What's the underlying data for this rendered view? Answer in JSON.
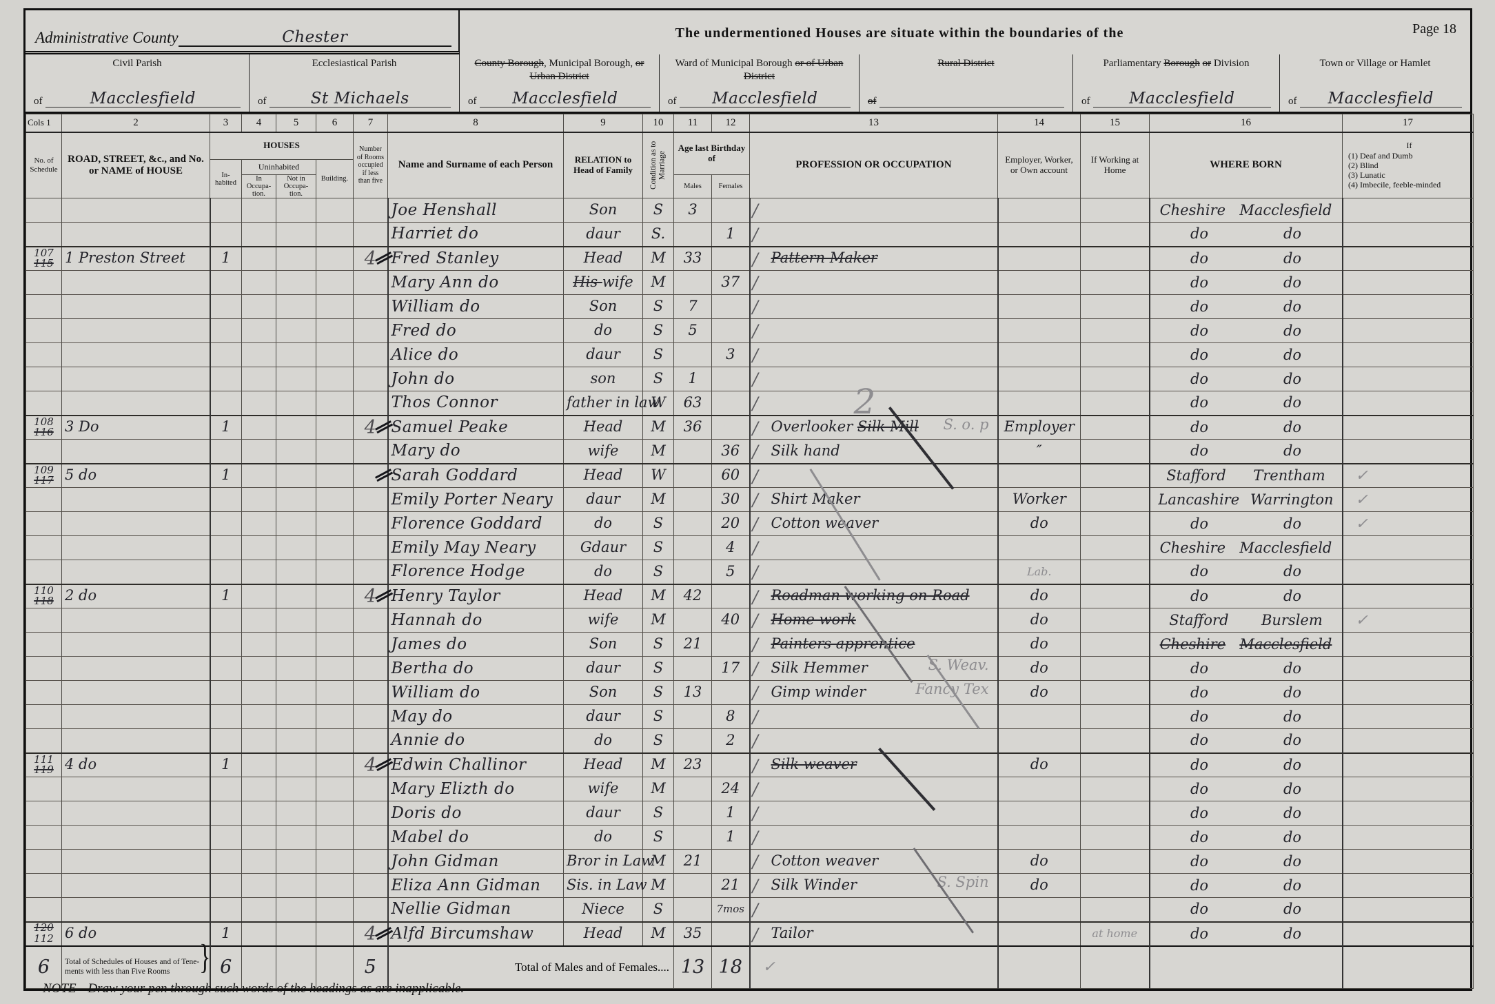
{
  "colors": {
    "paper": "#d7d6d2",
    "ink": "#23232a",
    "pencil": "#8e8d90",
    "print": "#131313"
  },
  "page": {
    "admin_county_label": "Administrative County",
    "admin_county_value": "Chester",
    "situate_text": "The undermentioned Houses are situate within the boundaries of the",
    "page_label": "Page 18",
    "note": "NOTE—Draw your pen through such words of the headings as are inapplicable."
  },
  "district_boxes": [
    {
      "title": [
        {
          "t": "Civil Parish"
        }
      ],
      "of": "of",
      "value": "Macclesfield"
    },
    {
      "title": [
        {
          "t": "Ecclesiastical Parish"
        }
      ],
      "of": "of",
      "value": "St Michaels"
    },
    {
      "title": [
        {
          "t": "County Borough",
          "s": 1
        },
        {
          "t": ", Municipal Borough, "
        },
        {
          "t": "or Urban District",
          "s": 1
        }
      ],
      "of": "of",
      "value": "Macclesfield"
    },
    {
      "title": [
        {
          "t": "Ward of Municipal Borough "
        },
        {
          "t": "or of Urban District",
          "s": 1
        }
      ],
      "of": "of",
      "value": "Macclesfield"
    },
    {
      "title": [
        {
          "t": "Rural District",
          "s": 1
        }
      ],
      "of": "of",
      "of_s": 1,
      "value": ""
    },
    {
      "title": [
        {
          "t": "Parliamentary "
        },
        {
          "t": "Borough",
          "s": 1
        },
        {
          "t": " "
        },
        {
          "t": "or",
          "s": 1
        },
        {
          "t": " Division"
        }
      ],
      "of": "of",
      "value": "Macclesfield"
    },
    {
      "title": [
        {
          "t": "Town or Village or Hamlet"
        }
      ],
      "of": "of",
      "value": "Macclesfield"
    }
  ],
  "columns": {
    "cols_label": "Cols 1",
    "numbers": [
      "2",
      "3",
      "4",
      "5",
      "6",
      "7",
      "8",
      "9",
      "10",
      "11",
      "12",
      "13",
      "14",
      "15",
      "16",
      "17"
    ],
    "schedule": "No. of Schedule",
    "road": "ROAD, STREET, &c., and No. or NAME of HOUSE",
    "houses": "HOUSES",
    "inhabited": "In-habited",
    "uninhabited": "Uninhabited",
    "in_occupation": "In Occupa-tion.",
    "not_in_occupation": "Not in Occupa-tion.",
    "building": "Building.",
    "rooms": "Number of Rooms occupied if less than five",
    "name": "Name and Surname of each Person",
    "relation": "RELATION to Head of Family",
    "condition": "Condition as to Marriage",
    "age": "Age last Birthday of",
    "males": "Males",
    "females": "Females",
    "profession": "PROFESSION OR OCCUPATION",
    "employer": "Employer, Worker, or Own account",
    "home": "If Working at Home",
    "born": "WHERE BORN",
    "infirm": [
      "If",
      "(1) Deaf and Dumb",
      "(2) Blind",
      "(3) Lunatic",
      "(4) Imbecile, feeble-minded"
    ]
  },
  "rows": [
    {
      "nm": "Joe Henshall",
      "rl": "Son",
      "cd": "S",
      "am": "3",
      "b1": "Cheshire",
      "b2": "Macclesfield"
    },
    {
      "nm": "Harriet do",
      "rl": "daur",
      "cd": "S.",
      "af": "1",
      "b1": "do",
      "b2": "do"
    },
    {
      "s1": "107",
      "s2": "115",
      "s2s": 1,
      "ad": "1 Preston Street",
      "in": "1",
      "rm": "4",
      "hh": 1,
      "nm": "Fred Stanley",
      "rl": "Head",
      "cd": "M",
      "am": "33",
      "pf": [
        [
          "Pattern Maker",
          1
        ]
      ],
      "b1": "do",
      "b2": "do"
    },
    {
      "nm": "Mary Ann do",
      "rp": "His",
      "rl": "wife",
      "cd": "M",
      "af": "37",
      "b1": "do",
      "b2": "do"
    },
    {
      "nm": "William do",
      "rl": "Son",
      "cd": "S",
      "am": "7",
      "b1": "do",
      "b2": "do"
    },
    {
      "nm": "Fred do",
      "rl": "do",
      "cd": "S",
      "am": "5",
      "b1": "do",
      "b2": "do"
    },
    {
      "nm": "Alice do",
      "rl": "daur",
      "cd": "S",
      "af": "3",
      "b1": "do",
      "b2": "do"
    },
    {
      "nm": "John do",
      "rl": "son",
      "cd": "S",
      "am": "1",
      "b1": "do",
      "b2": "do"
    },
    {
      "nm": "Thos Connor",
      "rl": "father in law",
      "cd": "W",
      "am": "63",
      "pb": "2",
      "b1": "do",
      "b2": "do"
    },
    {
      "s1": "108",
      "s2": "116",
      "s2s": 1,
      "ad": "3 Do",
      "in": "1",
      "rm": "4",
      "hh": 1,
      "nm": "Samuel Peake",
      "rl": "Head",
      "cd": "M",
      "am": "36",
      "pf": [
        [
          "Overlooker ",
          0
        ],
        [
          "Silk Mill",
          1
        ]
      ],
      "pp": "S. o. p",
      "em": "Employer",
      "b1": "do",
      "b2": "do"
    },
    {
      "nm": "Mary do",
      "rl": "wife",
      "cd": "M",
      "af": "36",
      "pf": [
        [
          "Silk hand",
          0
        ]
      ],
      "em": "″",
      "b1": "do",
      "b2": "do"
    },
    {
      "s1": "109",
      "s2": "117",
      "s2s": 1,
      "ad": "5 do",
      "in": "1",
      "hh": 1,
      "nm": "Sarah Goddard",
      "rl": "Head",
      "cd": "W",
      "af": "60",
      "b1": "Stafford",
      "b2": "Trentham",
      "ck": 1
    },
    {
      "nm": "Emily Porter Neary",
      "rl": "daur",
      "cd": "M",
      "af": "30",
      "pf": [
        [
          "Shirt Maker",
          0
        ]
      ],
      "em": "Worker",
      "b1": "Lancashire",
      "b2": "Warrington",
      "ck": 1
    },
    {
      "nm": "Florence Goddard",
      "rl": "do",
      "cd": "S",
      "af": "20",
      "pf": [
        [
          "Cotton weaver",
          0
        ]
      ],
      "em": "do",
      "b1": "do",
      "b2": "do",
      "ck": 1
    },
    {
      "nm": "Emily May Neary",
      "rl": "Gdaur",
      "cd": "S",
      "af": "4",
      "b1": "Cheshire",
      "b2": "Macclesfield"
    },
    {
      "nm": "Florence Hodge",
      "rl": "do",
      "cd": "S",
      "af": "5",
      "ep": "Lab.",
      "b1": "do",
      "b2": "do"
    },
    {
      "s1": "110",
      "s2": "118",
      "s2s": 1,
      "ad": "2 do",
      "in": "1",
      "rm": "4",
      "hh": 1,
      "nm": "Henry Taylor",
      "rl": "Head",
      "cd": "M",
      "am": "42",
      "pf": [
        [
          "Roadman working on Road",
          1
        ]
      ],
      "em": "do",
      "b1": "do",
      "b2": "do"
    },
    {
      "nm": "Hannah do",
      "rl": "wife",
      "cd": "M",
      "af": "40",
      "pf": [
        [
          "Home work",
          1
        ]
      ],
      "em": "do",
      "b1": "Stafford",
      "b2": "Burslem",
      "ck": 1
    },
    {
      "nm": "James do",
      "rl": "Son",
      "cd": "S",
      "am": "21",
      "pf": [
        [
          "Painters apprentice",
          1
        ]
      ],
      "em": "do",
      "b1": "Cheshire",
      "b2": "Macclesfield",
      "bs": 1
    },
    {
      "nm": "Bertha do",
      "rl": "daur",
      "cd": "S",
      "af": "17",
      "pf": [
        [
          "Silk Hemmer",
          0
        ]
      ],
      "pp": "S. Weav.",
      "em": "do",
      "b1": "do",
      "b2": "do"
    },
    {
      "nm": "William do",
      "rl": "Son",
      "cd": "S",
      "am": "13",
      "pf": [
        [
          "Gimp winder",
          0
        ]
      ],
      "pp": "Fancy Tex",
      "em": "do",
      "b1": "do",
      "b2": "do"
    },
    {
      "nm": "May do",
      "rl": "daur",
      "cd": "S",
      "af": "8",
      "b1": "do",
      "b2": "do"
    },
    {
      "nm": "Annie do",
      "rl": "do",
      "cd": "S",
      "af": "2",
      "b1": "do",
      "b2": "do"
    },
    {
      "s1": "111",
      "s2": "119",
      "s2s": 1,
      "ad": "4 do",
      "in": "1",
      "rm": "4",
      "hh": 1,
      "nm": "Edwin Challinor",
      "rl": "Head",
      "cd": "M",
      "am": "23",
      "pf": [
        [
          "Silk weaver",
          1
        ]
      ],
      "em": "do",
      "b1": "do",
      "b2": "do"
    },
    {
      "nm": "Mary Elizth do",
      "rl": "wife",
      "cd": "M",
      "af": "24",
      "b1": "do",
      "b2": "do"
    },
    {
      "nm": "Doris do",
      "rl": "daur",
      "cd": "S",
      "af": "1",
      "b1": "do",
      "b2": "do"
    },
    {
      "nm": "Mabel do",
      "rl": "do",
      "cd": "S",
      "af": "1",
      "b1": "do",
      "b2": "do"
    },
    {
      "nm": "John Gidman",
      "rl": "Bror in Law",
      "cd": "M",
      "am": "21",
      "pf": [
        [
          "Cotton weaver",
          0
        ]
      ],
      "em": "do",
      "b1": "do",
      "b2": "do"
    },
    {
      "nm": "Eliza Ann Gidman",
      "rl": "Sis. in Law",
      "cd": "M",
      "af": "21",
      "pf": [
        [
          "Silk Winder",
          0
        ]
      ],
      "pp": "S. Spin",
      "em": "do",
      "b1": "do",
      "b2": "do"
    },
    {
      "nm": "Nellie Gidman",
      "rl": "Niece",
      "cd": "S",
      "af": "7mos",
      "b1": "do",
      "b2": "do"
    },
    {
      "s1": "120",
      "s1s": 1,
      "s2": "112",
      "ad": "6 do",
      "in": "1",
      "rm": "4",
      "hh": 1,
      "nm": "Alfd Bircumshaw",
      "rl": "Head",
      "cd": "M",
      "am": "35",
      "pf": [
        [
          "Tailor",
          0
        ]
      ],
      "hp": "at home",
      "b1": "do",
      "b2": "do"
    }
  ],
  "totals": {
    "schedule": "6",
    "label": "Total of Schedules of Houses and of Tene-ments with less than Five Rooms",
    "inhabited": "6",
    "rooms": "5",
    "males_females_label": "Total of Males and of Females....",
    "males": "13",
    "females": "18",
    "check": "✓"
  }
}
